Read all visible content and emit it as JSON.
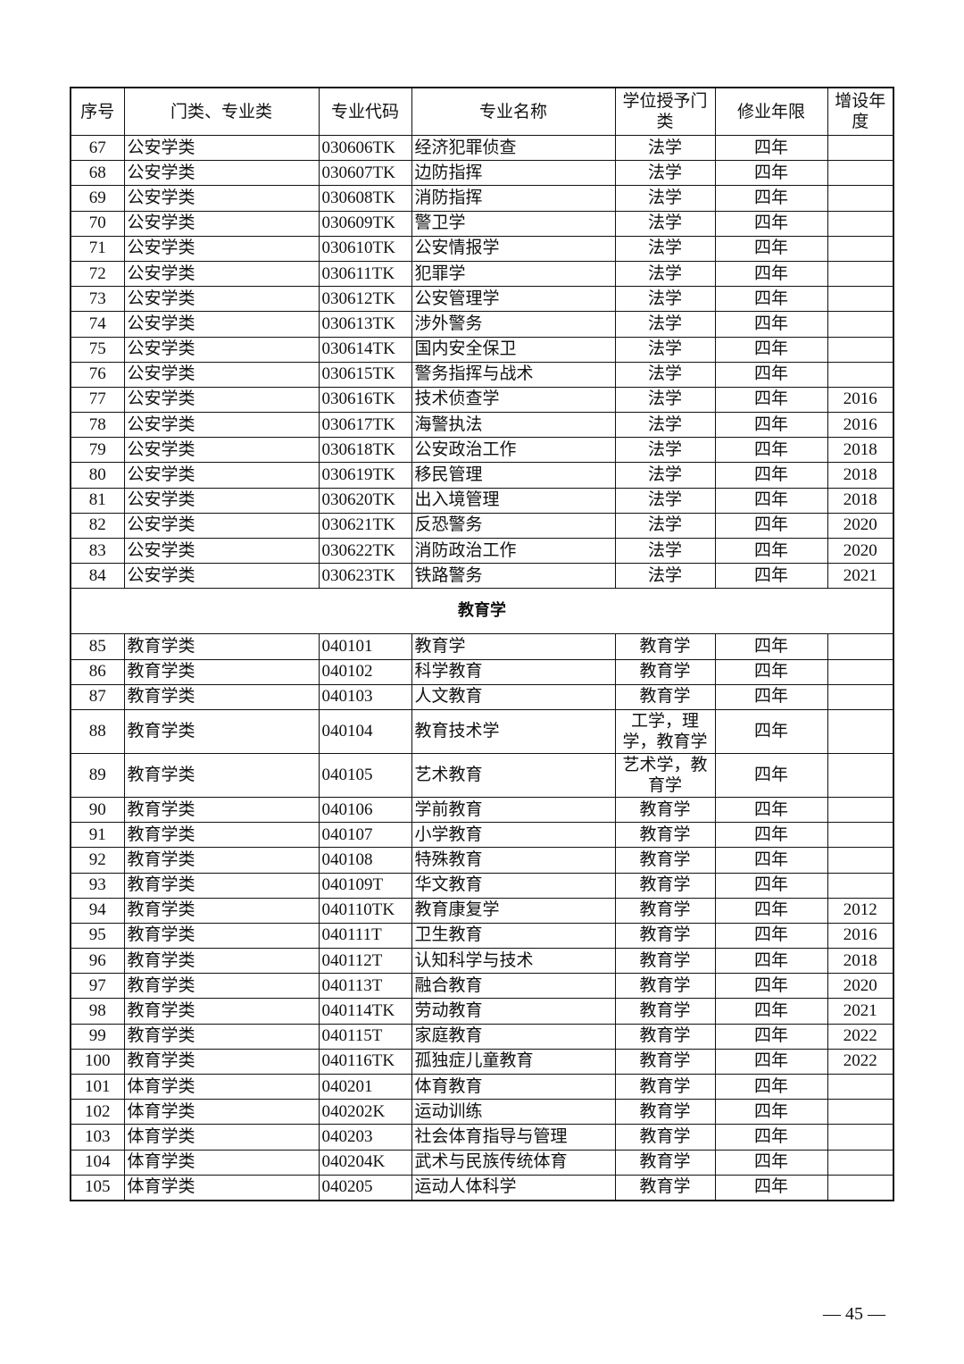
{
  "headers": [
    "序号",
    "门类、专业类",
    "专业代码",
    "专业名称",
    "学位授予门类",
    "修业年限",
    "增设年度"
  ],
  "rows_a": [
    [
      "67",
      "公安学类",
      "030606TK",
      "经济犯罪侦查",
      "法学",
      "四年",
      ""
    ],
    [
      "68",
      "公安学类",
      "030607TK",
      "边防指挥",
      "法学",
      "四年",
      ""
    ],
    [
      "69",
      "公安学类",
      "030608TK",
      "消防指挥",
      "法学",
      "四年",
      ""
    ],
    [
      "70",
      "公安学类",
      "030609TK",
      "警卫学",
      "法学",
      "四年",
      ""
    ],
    [
      "71",
      "公安学类",
      "030610TK",
      "公安情报学",
      "法学",
      "四年",
      ""
    ],
    [
      "72",
      "公安学类",
      "030611TK",
      "犯罪学",
      "法学",
      "四年",
      ""
    ],
    [
      "73",
      "公安学类",
      "030612TK",
      "公安管理学",
      "法学",
      "四年",
      ""
    ],
    [
      "74",
      "公安学类",
      "030613TK",
      "涉外警务",
      "法学",
      "四年",
      ""
    ],
    [
      "75",
      "公安学类",
      "030614TK",
      "国内安全保卫",
      "法学",
      "四年",
      ""
    ],
    [
      "76",
      "公安学类",
      "030615TK",
      "警务指挥与战术",
      "法学",
      "四年",
      ""
    ],
    [
      "77",
      "公安学类",
      "030616TK",
      "技术侦查学",
      "法学",
      "四年",
      "2016"
    ],
    [
      "78",
      "公安学类",
      "030617TK",
      "海警执法",
      "法学",
      "四年",
      "2016"
    ],
    [
      "79",
      "公安学类",
      "030618TK",
      "公安政治工作",
      "法学",
      "四年",
      "2018"
    ],
    [
      "80",
      "公安学类",
      "030619TK",
      "移民管理",
      "法学",
      "四年",
      "2018"
    ],
    [
      "81",
      "公安学类",
      "030620TK",
      "出入境管理",
      "法学",
      "四年",
      "2018"
    ],
    [
      "82",
      "公安学类",
      "030621TK",
      "反恐警务",
      "法学",
      "四年",
      "2020"
    ],
    [
      "83",
      "公安学类",
      "030622TK",
      "消防政治工作",
      "法学",
      "四年",
      "2020"
    ],
    [
      "84",
      "公安学类",
      "030623TK",
      "铁路警务",
      "法学",
      "四年",
      "2021"
    ]
  ],
  "section_title": "教育学",
  "rows_b": [
    [
      "85",
      "教育学类",
      "040101",
      "教育学",
      "教育学",
      "四年",
      ""
    ],
    [
      "86",
      "教育学类",
      "040102",
      "科学教育",
      "教育学",
      "四年",
      ""
    ],
    [
      "87",
      "教育学类",
      "040103",
      "人文教育",
      "教育学",
      "四年",
      ""
    ],
    [
      "88",
      "教育学类",
      "040104",
      "教育技术学",
      "工学，理学，教育学",
      "四年",
      ""
    ],
    [
      "89",
      "教育学类",
      "040105",
      "艺术教育",
      "艺术学，教育学",
      "四年",
      ""
    ],
    [
      "90",
      "教育学类",
      "040106",
      "学前教育",
      "教育学",
      "四年",
      ""
    ],
    [
      "91",
      "教育学类",
      "040107",
      "小学教育",
      "教育学",
      "四年",
      ""
    ],
    [
      "92",
      "教育学类",
      "040108",
      "特殊教育",
      "教育学",
      "四年",
      ""
    ],
    [
      "93",
      "教育学类",
      "040109T",
      "华文教育",
      "教育学",
      "四年",
      ""
    ],
    [
      "94",
      "教育学类",
      "040110TK",
      "教育康复学",
      "教育学",
      "四年",
      "2012"
    ],
    [
      "95",
      "教育学类",
      "040111T",
      "卫生教育",
      "教育学",
      "四年",
      "2016"
    ],
    [
      "96",
      "教育学类",
      "040112T",
      "认知科学与技术",
      "教育学",
      "四年",
      "2018"
    ],
    [
      "97",
      "教育学类",
      "040113T",
      "融合教育",
      "教育学",
      "四年",
      "2020"
    ],
    [
      "98",
      "教育学类",
      "040114TK",
      "劳动教育",
      "教育学",
      "四年",
      "2021"
    ],
    [
      "99",
      "教育学类",
      "040115T",
      "家庭教育",
      "教育学",
      "四年",
      "2022"
    ],
    [
      "100",
      "教育学类",
      "040116TK",
      "孤独症儿童教育",
      "教育学",
      "四年",
      "2022"
    ],
    [
      "101",
      "体育学类",
      "040201",
      "体育教育",
      "教育学",
      "四年",
      ""
    ],
    [
      "102",
      "体育学类",
      "040202K",
      "运动训练",
      "教育学",
      "四年",
      ""
    ],
    [
      "103",
      "体育学类",
      "040203",
      "社会体育指导与管理",
      "教育学",
      "四年",
      ""
    ],
    [
      "104",
      "体育学类",
      "040204K",
      "武术与民族传统体育",
      "教育学",
      "四年",
      ""
    ],
    [
      "105",
      "体育学类",
      "040205",
      "运动人体科学",
      "教育学",
      "四年",
      ""
    ]
  ],
  "page_number": "— 45 —"
}
